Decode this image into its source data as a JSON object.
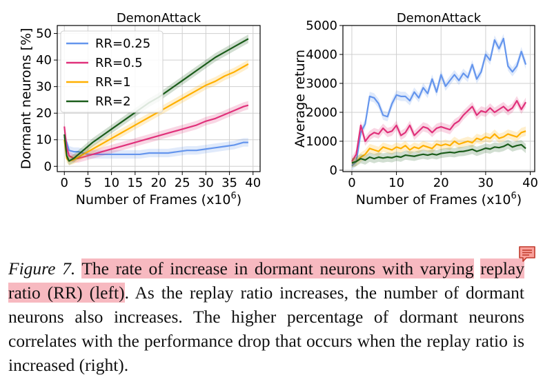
{
  "chart_data": [
    {
      "type": "line",
      "title": "DemonAttack",
      "xlabel": "Number of Frames (x10",
      "xlabel_sup": "6",
      "xlabel_end": ")",
      "ylabel": "Dormant neurons [%]",
      "xlim": [
        -1.5,
        41.5
      ],
      "ylim": [
        -2,
        53
      ],
      "xticks": [
        0,
        5,
        10,
        15,
        20,
        25,
        30,
        35,
        40
      ],
      "yticks": [
        0,
        10,
        20,
        30,
        40,
        50
      ],
      "grid": true,
      "legend": "top-left",
      "series": [
        {
          "name": "RR=0.25",
          "color": "#6495ed",
          "x": [
            0,
            0.5,
            1,
            2,
            3,
            4,
            5,
            6,
            8,
            10,
            12,
            14,
            16,
            18,
            20,
            22,
            24,
            26,
            28,
            30,
            32,
            34,
            36,
            38,
            39
          ],
          "y": [
            11,
            9,
            6,
            5.5,
            5.5,
            5,
            4.5,
            4.5,
            4.5,
            4.5,
            4.5,
            4.5,
            4.5,
            5,
            5,
            5,
            5.5,
            6,
            6,
            6.5,
            7,
            7.5,
            8,
            9,
            9
          ]
        },
        {
          "name": "RR=0.5",
          "color": "#e0307a",
          "x": [
            0,
            0.5,
            1,
            2,
            3,
            4,
            5,
            6,
            8,
            10,
            12,
            14,
            16,
            18,
            20,
            22,
            24,
            26,
            28,
            30,
            32,
            34,
            36,
            38,
            39
          ],
          "y": [
            15,
            7,
            4,
            3,
            3,
            3.5,
            4,
            4.5,
            5.5,
            6.5,
            7.5,
            8.5,
            9.5,
            10.5,
            11.5,
            12.5,
            13.5,
            14.5,
            15.5,
            17,
            18,
            19.5,
            21,
            22.5,
            23
          ]
        },
        {
          "name": "RR=1",
          "color": "#ffb000",
          "x": [
            0,
            0.5,
            1,
            2,
            3,
            4,
            5,
            6,
            8,
            10,
            12,
            14,
            16,
            18,
            20,
            22,
            24,
            26,
            28,
            30,
            32,
            34,
            36,
            38,
            39
          ],
          "y": [
            10,
            3,
            2,
            2.5,
            3.5,
            4.5,
            5.5,
            6.5,
            8.5,
            10.5,
            12.5,
            14.5,
            16.5,
            18.5,
            20.5,
            22.5,
            24.5,
            26.5,
            28.5,
            30.5,
            32,
            34,
            35.5,
            37.5,
            38.5
          ]
        },
        {
          "name": "RR=2",
          "color": "#1a5c1a",
          "x": [
            0,
            0.5,
            1,
            2,
            3,
            4,
            5,
            6,
            8,
            10,
            12,
            14,
            16,
            18,
            20,
            22,
            24,
            26,
            28,
            30,
            32,
            34,
            36,
            38,
            39
          ],
          "y": [
            12,
            4,
            2,
            3,
            4.5,
            6,
            7.5,
            9,
            11.5,
            14,
            16.5,
            19,
            21.5,
            24,
            26,
            28.5,
            31,
            33.5,
            36,
            38.5,
            41,
            43,
            45,
            47,
            48
          ]
        }
      ]
    },
    {
      "type": "line",
      "title": "DemonAttack",
      "xlabel": "Number of Frames (x10",
      "xlabel_sup": "6",
      "xlabel_end": ")",
      "ylabel": "Average return",
      "xlim": [
        -2,
        41
      ],
      "ylim": [
        -50,
        5000
      ],
      "xticks": [
        0,
        10,
        20,
        30,
        40
      ],
      "yticks": [
        0,
        1000,
        2000,
        3000,
        4000,
        5000
      ],
      "grid": true,
      "series": [
        {
          "name": "RR=0.25",
          "color": "#6495ed",
          "x": [
            0,
            1,
            2,
            3,
            4,
            5,
            6,
            7,
            8,
            9,
            10,
            11,
            12,
            13,
            14,
            15,
            16,
            17,
            18,
            19,
            20,
            21,
            22,
            23,
            24,
            25,
            26,
            27,
            28,
            29,
            30,
            31,
            32,
            33,
            34,
            35,
            36,
            37,
            38,
            39
          ],
          "y": [
            150,
            300,
            1300,
            1600,
            2550,
            2500,
            2300,
            1900,
            1850,
            2300,
            2600,
            2550,
            2550,
            2400,
            2700,
            2500,
            2850,
            2650,
            3150,
            2700,
            3300,
            2900,
            3100,
            3300,
            3100,
            3350,
            3200,
            3650,
            3150,
            3400,
            4000,
            3800,
            4500,
            4200,
            4550,
            3600,
            3400,
            3600,
            4100,
            3650
          ]
        },
        {
          "name": "RR=0.5",
          "color": "#e0307a",
          "x": [
            0,
            1,
            2,
            3,
            4,
            5,
            6,
            7,
            8,
            9,
            10,
            11,
            12,
            13,
            14,
            15,
            16,
            17,
            18,
            19,
            20,
            21,
            22,
            23,
            24,
            25,
            26,
            27,
            28,
            29,
            30,
            31,
            32,
            33,
            34,
            35,
            36,
            37,
            38,
            39
          ],
          "y": [
            300,
            550,
            1550,
            1000,
            1200,
            1300,
            1250,
            1450,
            1300,
            1350,
            1550,
            1200,
            1300,
            1550,
            1200,
            1350,
            1500,
            1450,
            1300,
            1450,
            1500,
            1450,
            1400,
            1600,
            1700,
            1900,
            2050,
            2200,
            1900,
            2050,
            2000,
            2150,
            2000,
            2100,
            2200,
            2050,
            2150,
            2400,
            2100,
            2350
          ]
        },
        {
          "name": "RR=1",
          "color": "#ffb000",
          "x": [
            0,
            1,
            2,
            3,
            4,
            5,
            6,
            7,
            8,
            9,
            10,
            11,
            12,
            13,
            14,
            15,
            16,
            17,
            18,
            19,
            20,
            21,
            22,
            23,
            24,
            25,
            26,
            27,
            28,
            29,
            30,
            31,
            32,
            33,
            34,
            35,
            36,
            37,
            38,
            39
          ],
          "y": [
            250,
            300,
            450,
            550,
            750,
            700,
            650,
            800,
            750,
            700,
            800,
            750,
            850,
            700,
            800,
            750,
            850,
            800,
            750,
            900,
            850,
            900,
            850,
            1000,
            900,
            950,
            1000,
            950,
            1100,
            1050,
            1150,
            1100,
            1250,
            1100,
            1150,
            1250,
            1200,
            1150,
            1300,
            1350
          ]
        },
        {
          "name": "RR=2",
          "color": "#1a5c1a",
          "x": [
            0,
            1,
            2,
            3,
            4,
            5,
            6,
            7,
            8,
            9,
            10,
            11,
            12,
            13,
            14,
            15,
            16,
            17,
            18,
            19,
            20,
            21,
            22,
            23,
            24,
            25,
            26,
            27,
            28,
            29,
            30,
            31,
            32,
            33,
            34,
            35,
            36,
            37,
            38,
            39
          ],
          "y": [
            250,
            300,
            400,
            350,
            450,
            400,
            450,
            420,
            450,
            430,
            480,
            450,
            520,
            500,
            480,
            520,
            550,
            520,
            560,
            530,
            580,
            600,
            620,
            600,
            640,
            650,
            680,
            720,
            650,
            700,
            760,
            730,
            800,
            780,
            820,
            900,
            800,
            850,
            880,
            750
          ]
        }
      ]
    }
  ],
  "caption": {
    "figure_label": "Figure 7.",
    "highlight_1": "The rate of increase in dormant neurons with varying",
    "highlight_2": "replay ratio (RR) (left)",
    "rest": ". As the replay ratio increases, the number of dormant neurons also increases.  The higher percentage of dormant neurons correlates with the performance drop that occurs when the replay ratio is increased (right).",
    "comment_icon": "comment-icon"
  }
}
